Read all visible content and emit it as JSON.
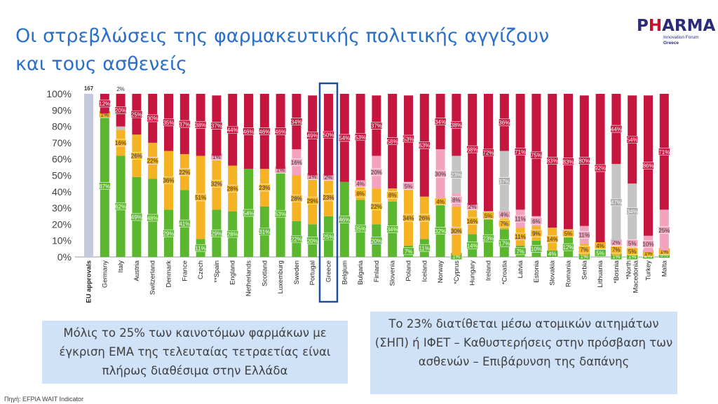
{
  "slide": {
    "title_line1": "Οι στρεβλώσεις της φαρμακευτικής πολιτικής αγγίζουν",
    "title_line2": "και τους ασθενείς",
    "logo_main_a": "P",
    "logo_main_h": "H",
    "logo_main_b": "ARMA",
    "logo_sub": "Innovation Forum",
    "logo_sub2": "Greece",
    "box_left_text": "Μόλις το 25% των καινοτόμων φαρμάκων με έγκριση EMA της τελευταίας τετραετίας είναι πλήρως διαθέσιμα στην Ελλάδα",
    "box_right_text": "Το 23% διατίθεται μέσω ατομικών αιτημάτων (ΣΗΠ) ή ΙΦΕΤ – Καθυστερήσεις στην πρόσβαση των ασθενών – Επιβάρυνση της δαπάνης",
    "source": "Πηγή: EFPIA WAIT Indicator"
  },
  "colors": {
    "green": "#5bb82e",
    "orange": "#f5b223",
    "pink": "#f3a3bd",
    "grey": "#c4c4c4",
    "red": "#c6153f",
    "eu": "#c3c9dc",
    "highlight": "#1f4e9e",
    "title": "#2a6fc9"
  },
  "chart_data": {
    "type": "bar",
    "stacked": true,
    "ylim": [
      0,
      100
    ],
    "yticks": [
      "0%",
      "10%",
      "20%",
      "30%",
      "40%",
      "50%",
      "60%",
      "70%",
      "80%",
      "90%",
      "100%"
    ],
    "eu_label": "EU approvals",
    "eu_count": "167",
    "highlight": "Greece",
    "series_order": [
      "green",
      "orange",
      "pink",
      "grey",
      "red"
    ],
    "countries": [
      {
        "name": "Germany",
        "green": 87,
        "orange": 1,
        "pink": 0,
        "grey": 0,
        "red": 12,
        "labels": {
          "green": "87%",
          "orange": "1%",
          "red": "12%"
        }
      },
      {
        "name": "Italy",
        "green": 62,
        "orange": 16,
        "pink": 0,
        "grey": 2,
        "red": 20,
        "labels": {
          "green": "62%",
          "orange": "16%",
          "red": "20%",
          "grey_above": "2%"
        }
      },
      {
        "name": "Austria",
        "green": 49,
        "orange": 26,
        "pink": 0,
        "grey": 0,
        "red": 25,
        "labels": {
          "green": "49%",
          "orange": "26%",
          "red": "25%"
        }
      },
      {
        "name": "Switzerland",
        "green": 48,
        "orange": 22,
        "pink": 0,
        "grey": 0,
        "red": 30,
        "labels": {
          "green": "48%",
          "orange": "22%",
          "red": "30%"
        }
      },
      {
        "name": "Denmark",
        "green": 29,
        "orange": 36,
        "pink": 0,
        "grey": 0,
        "red": 35,
        "labels": {
          "green": "29%",
          "orange": "36%",
          "red": "35%"
        }
      },
      {
        "name": "France",
        "green": 41,
        "orange": 22,
        "pink": 0,
        "grey": 0,
        "red": 37,
        "labels": {
          "green": "41%",
          "orange": "22%",
          "red": "37%"
        }
      },
      {
        "name": "Czech",
        "green": 11,
        "orange": 51,
        "pink": 0,
        "grey": 0,
        "red": 38,
        "labels": {
          "green": "11%",
          "orange": "51%",
          "red": "38%"
        }
      },
      {
        "name": "**Spain",
        "green": 29,
        "orange": 32,
        "pink": 1,
        "grey": 0,
        "red": 37,
        "labels": {
          "green": "29%",
          "orange": "32%",
          "pink": "1%",
          "red": "37%"
        }
      },
      {
        "name": "England",
        "green": 28,
        "orange": 28,
        "pink": 0,
        "grey": 0,
        "red": 44,
        "labels": {
          "green": "28%",
          "orange": "28%",
          "red": "44%"
        }
      },
      {
        "name": "Netherlands",
        "green": 54,
        "orange": 0,
        "pink": 0,
        "grey": 0,
        "red": 46,
        "labels": {
          "green": "54%",
          "red": "46%"
        }
      },
      {
        "name": "Scotland",
        "green": 31,
        "orange": 23,
        "pink": 0,
        "grey": 0,
        "red": 46,
        "labels": {
          "green": "31%",
          "orange": "23%",
          "red": "46%"
        }
      },
      {
        "name": "Luxemburg",
        "green": 53,
        "orange": 0,
        "pink": 1,
        "grey": 0,
        "red": 46,
        "labels": {
          "green": "53%",
          "pink": "1%",
          "red": "46%"
        }
      },
      {
        "name": "Sweden",
        "green": 22,
        "orange": 28,
        "pink": 16,
        "grey": 0,
        "red": 34,
        "labels": {
          "green": "22%",
          "orange": "28%",
          "pink": "16%",
          "red": "34%"
        }
      },
      {
        "name": "Portugal",
        "green": 20,
        "orange": 29,
        "pink": 1,
        "grey": 0,
        "red": 49,
        "labels": {
          "green": "20%",
          "orange": "29%",
          "pink": "1%",
          "red": "49%"
        }
      },
      {
        "name": "Greece",
        "green": 25,
        "orange": 23,
        "pink": 2,
        "grey": 0,
        "red": 50,
        "labels": {
          "green": "25%",
          "orange": "23%",
          "pink": "2%",
          "red": "50%"
        }
      },
      {
        "name": "Belgium",
        "green": 46,
        "orange": 0,
        "pink": 0,
        "grey": 0,
        "red": 54,
        "labels": {
          "green": "46%",
          "red": "54%"
        }
      },
      {
        "name": "Bulgaria",
        "green": 35,
        "orange": 8,
        "pink": 4,
        "grey": 0,
        "red": 53,
        "labels": {
          "green": "35%",
          "orange": "8%",
          "pink": "4%",
          "red": "53%"
        }
      },
      {
        "name": "Finland",
        "green": 20,
        "orange": 22,
        "pink": 20,
        "grey": 0,
        "red": 37,
        "labels": {
          "green": "20%",
          "orange": "22%",
          "pink": "20%",
          "red": "37%"
        }
      },
      {
        "name": "Slovenia",
        "green": 34,
        "orange": 8,
        "pink": 0,
        "grey": 0,
        "red": 58,
        "labels": {
          "green": "34%",
          "orange": "8%",
          "red": "58%"
        }
      },
      {
        "name": "Poland",
        "green": 7,
        "orange": 34,
        "pink": 5,
        "grey": 0,
        "red": 53,
        "labels": {
          "green": "7%",
          "orange": "34%",
          "pink": "5%",
          "red": "53%"
        }
      },
      {
        "name": "Iceland",
        "green": 11,
        "orange": 26,
        "pink": 0,
        "grey": 0,
        "red": 63,
        "labels": {
          "green": "11%",
          "orange": "26%",
          "red": "63%"
        }
      },
      {
        "name": "Norway",
        "green": 32,
        "orange": 4,
        "pink": 30,
        "grey": 0,
        "red": 34,
        "labels": {
          "green": "32%",
          "orange": "4%",
          "pink": "30%",
          "red": "34%"
        }
      },
      {
        "name": "*Cyprus",
        "green": 1,
        "orange": 30,
        "pink": 8,
        "grey": 23,
        "red": 38,
        "labels": {
          "green": "1%",
          "orange": "30%",
          "pink": "8%",
          "grey": "23%",
          "red": "38%"
        }
      },
      {
        "name": "Hungary",
        "green": 14,
        "orange": 16,
        "pink": 2,
        "grey": 0,
        "red": 68,
        "labels": {
          "green": "14%",
          "orange": "16%",
          "pink": "2%",
          "red": "68%"
        }
      },
      {
        "name": "Ireland",
        "green": 23,
        "orange": 5,
        "pink": 0,
        "grey": 0,
        "red": 72,
        "labels": {
          "green": "23%",
          "orange": "5%",
          "red": "72%"
        }
      },
      {
        "name": "*Croatia",
        "green": 17,
        "orange": 7,
        "pink": 4,
        "grey": 37,
        "red": 36,
        "labels": {
          "green": "17%",
          "orange": "7%",
          "pink": "4%",
          "grey": "37%",
          "red": "36%"
        }
      },
      {
        "name": "Latvia",
        "green": 7,
        "orange": 11,
        "pink": 11,
        "grey": 0,
        "red": 71,
        "labels": {
          "green": "7%",
          "orange": "11%",
          "pink": "11%",
          "red": "71%"
        }
      },
      {
        "name": "Estonia",
        "green": 10,
        "orange": 9,
        "pink": 6,
        "grey": 0,
        "red": 75,
        "labels": {
          "green": "10%",
          "orange": "9%",
          "pink": "6%",
          "red": "75%"
        }
      },
      {
        "name": "Slovakia",
        "green": 4,
        "orange": 14,
        "pink": 0,
        "grey": 0,
        "red": 83,
        "labels": {
          "green": "4%",
          "orange": "14%",
          "red": "83%"
        }
      },
      {
        "name": "Romania",
        "green": 12,
        "orange": 5,
        "pink": 0,
        "grey": 0,
        "red": 83,
        "labels": {
          "green": "12%",
          "orange": "5%",
          "red": "83%"
        }
      },
      {
        "name": "Serbia",
        "green": 1,
        "orange": 7,
        "pink": 11,
        "grey": 0,
        "red": 80,
        "labels": {
          "green": "1%",
          "orange": "7%",
          "pink": "11%",
          "red": "80%"
        }
      },
      {
        "name": "Lithuania",
        "green": 5,
        "orange": 4,
        "pink": 0,
        "grey": 0,
        "red": 92,
        "labels": {
          "green": "5%",
          "orange": "4%",
          "red": "92%"
        }
      },
      {
        "name": "*Bosnia",
        "green": 1,
        "orange": 7,
        "pink": 2,
        "grey": 47,
        "red": 44,
        "labels": {
          "green": "1%",
          "orange": "7%",
          "pink": "2%",
          "grey": "47%",
          "red": "44%"
        }
      },
      {
        "name": "*North Macedonia",
        "green": 1,
        "orange": 5,
        "pink": 5,
        "grey": 34,
        "red": 54,
        "labels": {
          "green": "1%",
          "orange": "5%",
          "pink": "5%",
          "grey": "34%",
          "red": "54%"
        }
      },
      {
        "name": "Turkey",
        "green": 2,
        "orange": 1,
        "pink": 10,
        "grey": 0,
        "red": 86,
        "labels": {
          "green": "2%",
          "orange": "1%",
          "pink": "10%",
          "red": "86%"
        }
      },
      {
        "name": "Malta",
        "green": 3,
        "orange": 1,
        "pink": 25,
        "grey": 0,
        "red": 71,
        "labels": {
          "green": "3%",
          "orange": "1%",
          "pink": "25%",
          "red": "71%"
        }
      }
    ]
  }
}
